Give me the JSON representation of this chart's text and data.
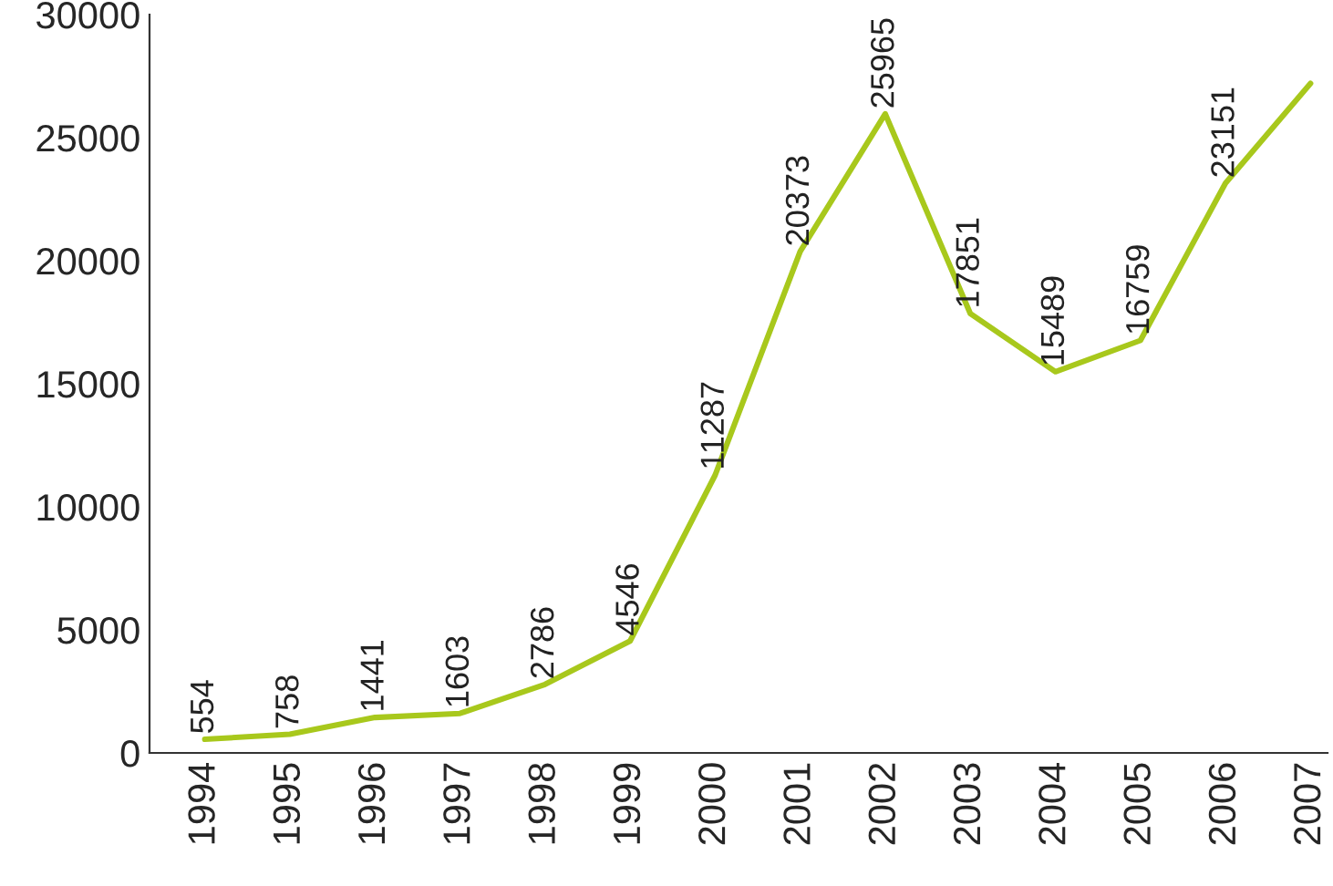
{
  "chart_data": {
    "type": "line",
    "categories": [
      "1994",
      "1995",
      "1996",
      "1997",
      "1998",
      "1999",
      "2000",
      "2001",
      "2002",
      "2003",
      "2004",
      "2005",
      "2006",
      "2007"
    ],
    "series": [
      {
        "color": "#a8c81c",
        "values": [
          554,
          758,
          1441,
          1603,
          2786,
          4546,
          11287,
          20373,
          25965,
          17851,
          15489,
          16759,
          23151,
          27200
        ],
        "value_labels": [
          "554",
          "758",
          "1441",
          "1603",
          "2786",
          "4546",
          "11287",
          "20373",
          "25965",
          "17851",
          "15489",
          "16759",
          "23151",
          null
        ]
      }
    ],
    "ylim": [
      0,
      30000
    ],
    "yticks": [
      0,
      5000,
      10000,
      15000,
      20000,
      25000,
      30000
    ],
    "grid": false,
    "legend": false,
    "marker": "none",
    "line_style": "solid"
  }
}
